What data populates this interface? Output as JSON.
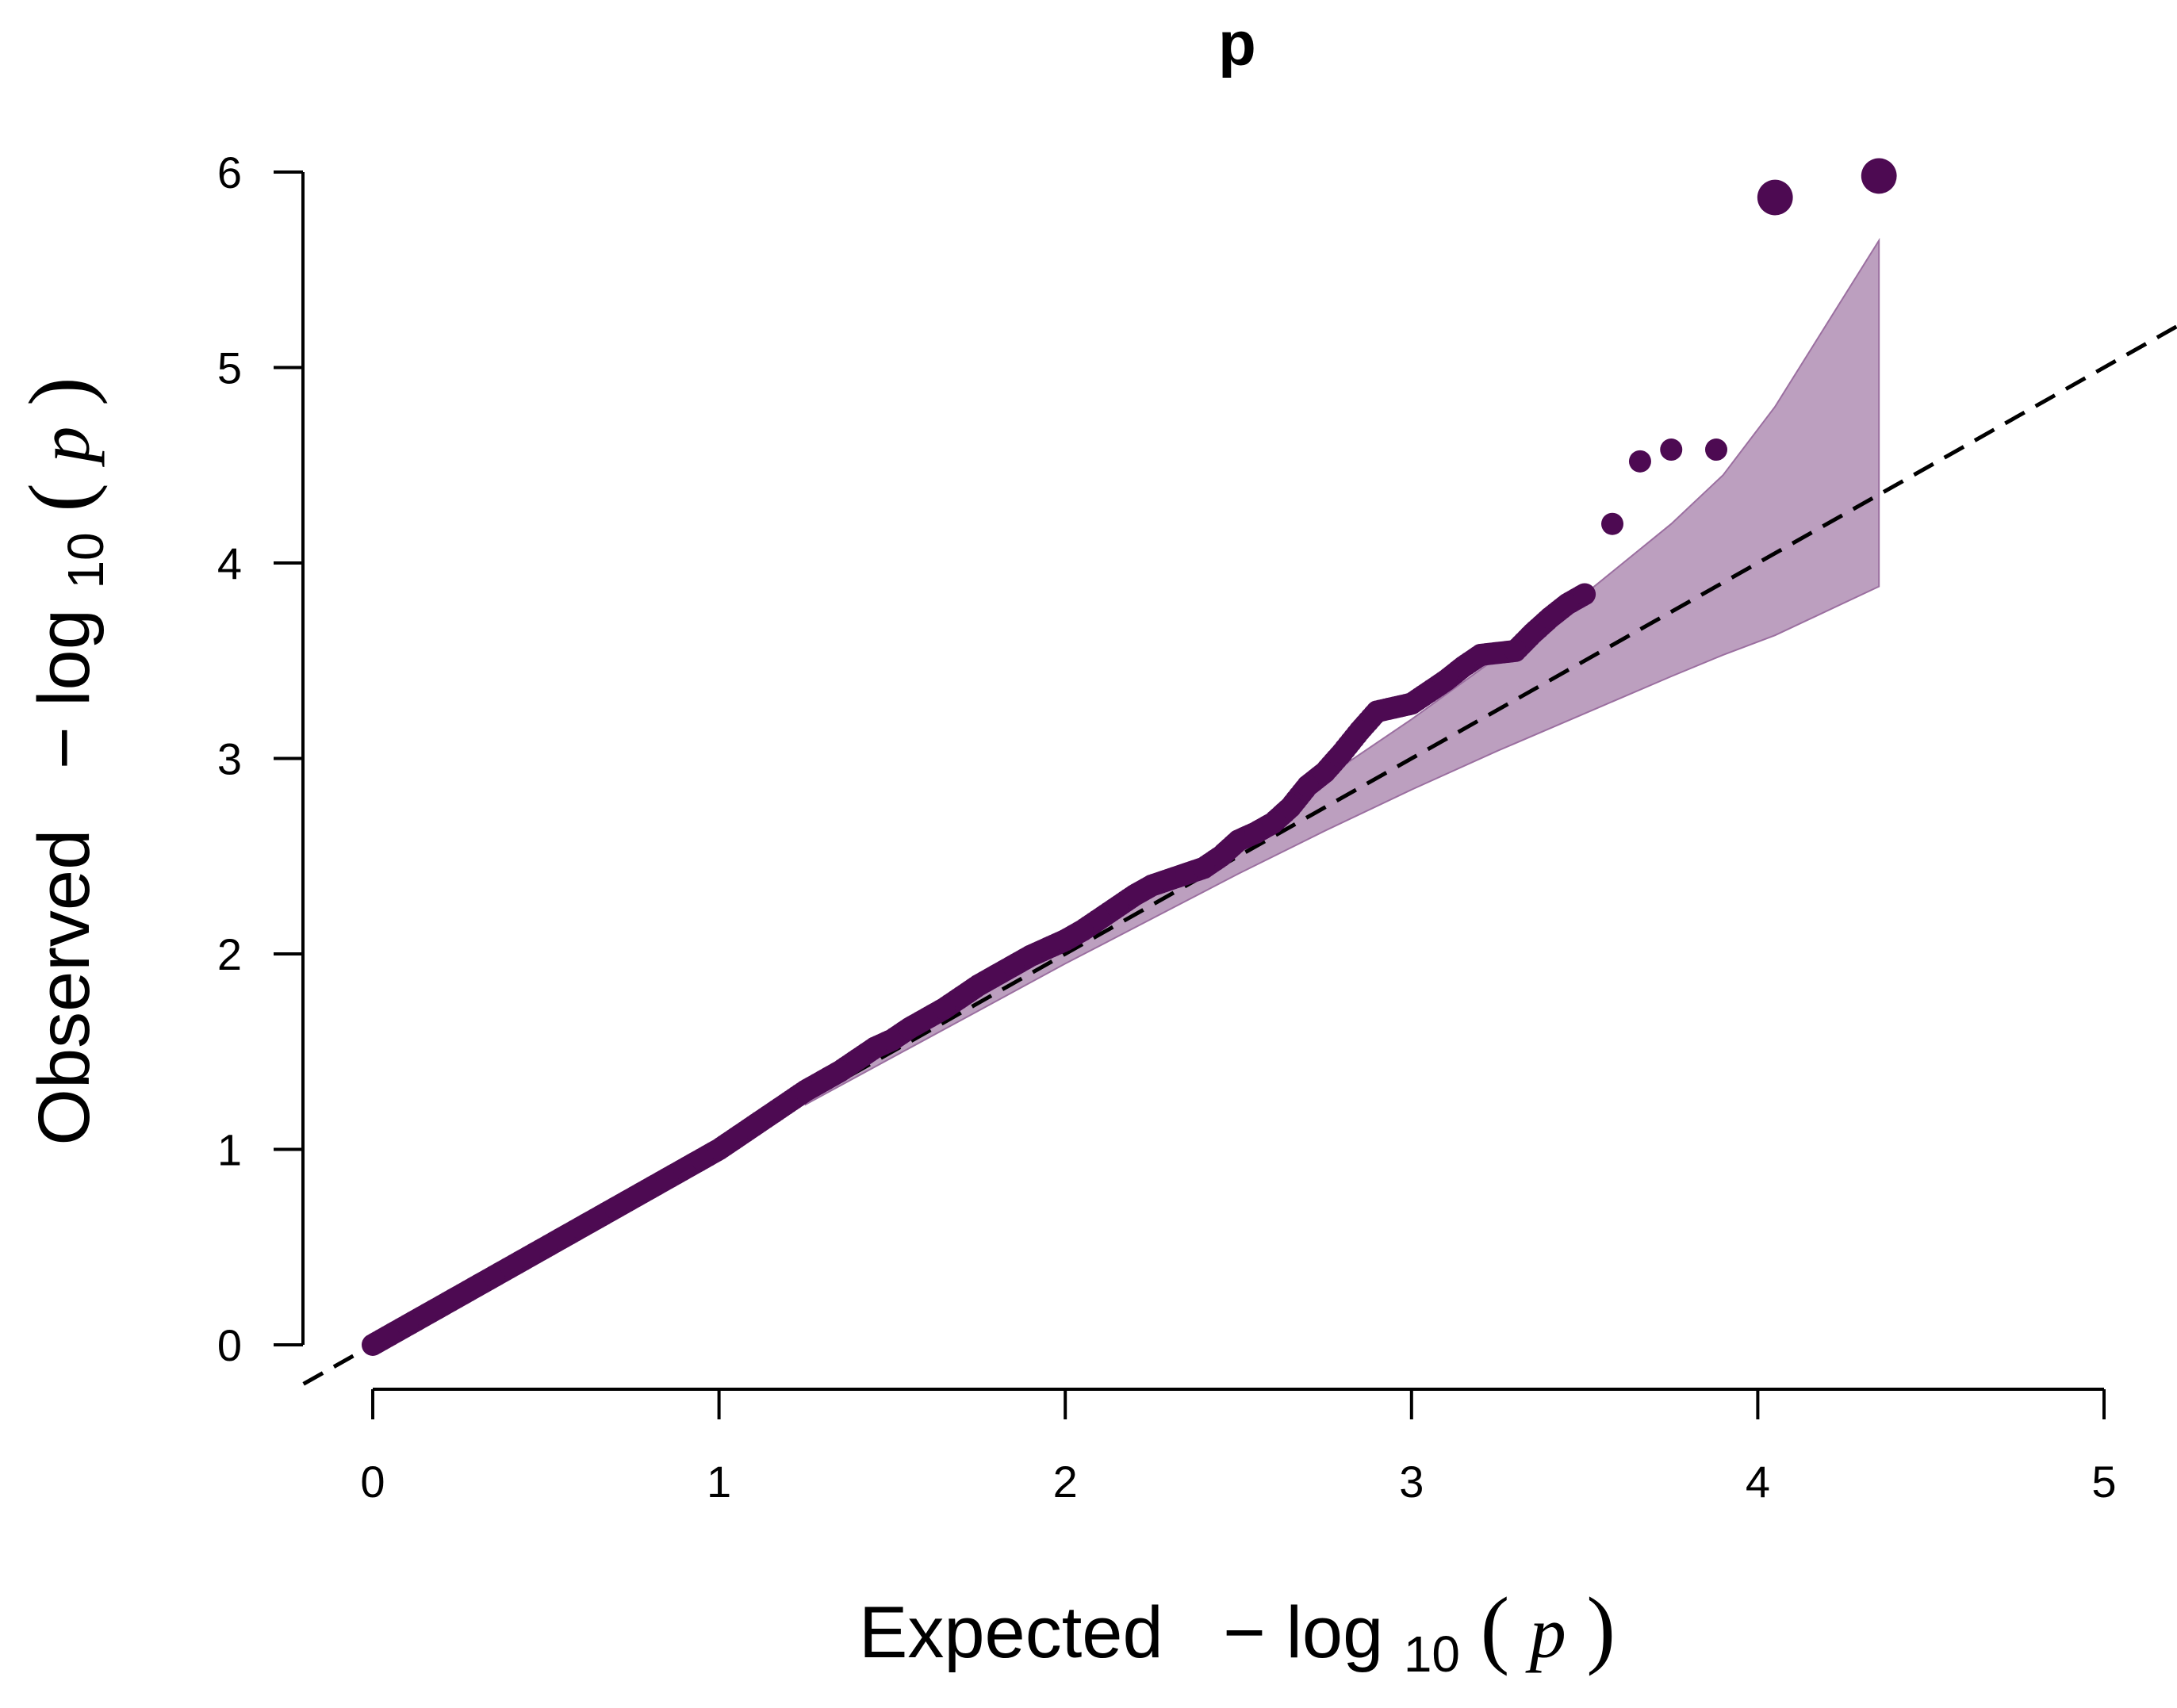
{
  "chart_data": {
    "type": "scatter",
    "title": "p",
    "xlabel": {
      "prefix": "Expected",
      "minus": "−",
      "log": "log",
      "sub": "10",
      "open": "(",
      "var": "p",
      "close": ")"
    },
    "ylabel": {
      "prefix": "Observed",
      "minus": "−",
      "log": "log",
      "sub": "10",
      "open": "(",
      "var": "p",
      "close": ")"
    },
    "xlim": [
      0,
      5
    ],
    "ylim": [
      0,
      6
    ],
    "xticks": [
      "0",
      "1",
      "2",
      "3",
      "4",
      "5"
    ],
    "yticks": [
      "0",
      "1",
      "2",
      "3",
      "4",
      "5",
      "6"
    ],
    "colors": {
      "points": "#4d0a52",
      "band_fill": "#bc9fbf",
      "band_edge": "#9b6fa0",
      "diagonal": "#000000"
    },
    "reference_line": {
      "slope": 1,
      "intercept": 0,
      "style": "dashed"
    },
    "confidence_band": {
      "x": [
        1.25,
        1.5,
        1.75,
        2.0,
        2.25,
        2.5,
        2.75,
        3.0,
        3.25,
        3.5,
        3.75,
        3.9,
        4.05,
        4.35
      ],
      "upper": [
        1.27,
        1.53,
        1.79,
        2.05,
        2.32,
        2.6,
        2.9,
        3.2,
        3.52,
        3.84,
        4.2,
        4.45,
        4.8,
        5.65
      ],
      "lower": [
        1.23,
        1.47,
        1.71,
        1.95,
        2.18,
        2.41,
        2.63,
        2.84,
        3.04,
        3.23,
        3.42,
        3.53,
        3.63,
        3.88
      ]
    },
    "series": [
      {
        "name": "observed",
        "x": [
          0.0,
          0.05,
          0.1,
          0.15,
          0.2,
          0.25,
          0.3,
          0.35,
          0.4,
          0.45,
          0.5,
          0.55,
          0.6,
          0.65,
          0.7,
          0.75,
          0.8,
          0.85,
          0.9,
          0.95,
          1.0,
          1.05,
          1.1,
          1.15,
          1.2,
          1.25,
          1.3,
          1.35,
          1.4,
          1.45,
          1.5,
          1.55,
          1.6,
          1.65,
          1.7,
          1.75,
          1.8,
          1.85,
          1.9,
          1.95,
          2.0,
          2.05,
          2.1,
          2.15,
          2.2,
          2.25,
          2.3,
          2.35,
          2.4,
          2.45,
          2.5,
          2.55,
          2.6,
          2.65,
          2.7,
          2.75,
          2.8,
          2.85,
          2.9,
          2.95,
          3.0,
          3.05,
          3.1,
          3.15,
          3.2,
          3.25,
          3.3,
          3.35,
          3.4,
          3.45,
          3.5,
          3.58,
          3.66,
          3.75,
          3.88,
          4.05,
          4.35
        ],
        "y": [
          0.0,
          0.05,
          0.1,
          0.15,
          0.2,
          0.25,
          0.3,
          0.35,
          0.4,
          0.45,
          0.5,
          0.55,
          0.6,
          0.65,
          0.7,
          0.75,
          0.8,
          0.85,
          0.9,
          0.95,
          1.0,
          1.06,
          1.12,
          1.18,
          1.24,
          1.3,
          1.35,
          1.4,
          1.46,
          1.52,
          1.56,
          1.62,
          1.67,
          1.72,
          1.78,
          1.84,
          1.89,
          1.94,
          1.99,
          2.03,
          2.07,
          2.12,
          2.18,
          2.24,
          2.3,
          2.35,
          2.38,
          2.41,
          2.44,
          2.5,
          2.58,
          2.62,
          2.67,
          2.75,
          2.86,
          2.93,
          3.03,
          3.14,
          3.24,
          3.26,
          3.28,
          3.34,
          3.4,
          3.47,
          3.53,
          3.54,
          3.55,
          3.64,
          3.72,
          3.79,
          3.84,
          4.2,
          4.52,
          4.58,
          4.58,
          5.87,
          5.98
        ],
        "sizes": [
          1,
          1,
          1,
          1,
          1,
          1,
          1,
          1,
          1,
          1,
          1,
          1,
          1,
          1,
          1,
          1,
          1,
          1,
          1,
          1,
          1,
          1,
          1,
          1,
          1,
          1,
          1,
          1,
          1,
          1,
          1,
          1,
          1,
          1,
          1,
          1,
          1,
          1,
          1,
          1,
          1,
          1,
          1,
          1,
          1,
          1,
          1,
          1,
          1,
          1,
          1,
          1,
          1,
          1,
          1,
          1,
          1,
          1,
          1,
          1,
          1,
          1,
          1,
          1,
          1,
          1,
          1,
          1,
          1,
          1,
          1,
          1,
          1,
          1,
          1,
          1.6,
          1.6
        ]
      }
    ]
  }
}
